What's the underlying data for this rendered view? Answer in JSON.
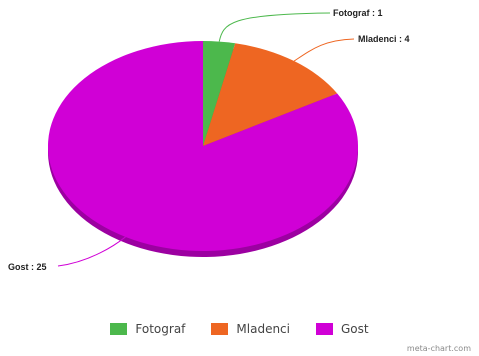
{
  "chart_data": {
    "type": "pie",
    "categories": [
      "Fotograf",
      "Mladenci",
      "Gost"
    ],
    "values": [
      1,
      4,
      25
    ],
    "slice_labels": [
      "Fotograf : 1",
      "Mladenci : 4",
      "Gost : 25"
    ],
    "colors": [
      "#4cb84c",
      "#ee6622",
      "#d000d6"
    ],
    "legend_placement": "bottom-center"
  },
  "watermark": "meta-chart.com"
}
